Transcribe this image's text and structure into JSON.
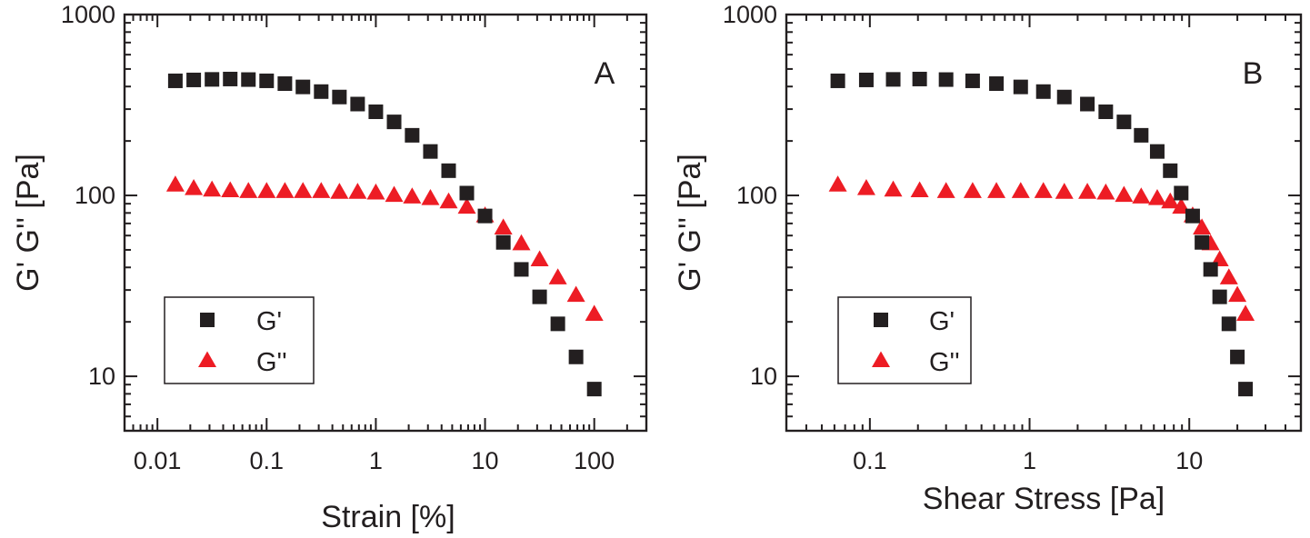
{
  "colors": {
    "gprime": "#231f20",
    "gdoubleprime": "#ed1c24",
    "axis": "#231f20"
  },
  "chart_data": [
    {
      "type": "scatter",
      "panel_label": "A",
      "xlabel": "Strain [%]",
      "ylabel": "G' G'' [Pa]",
      "xscale": "log",
      "yscale": "log",
      "xlim": [
        0.005,
        300
      ],
      "ylim": [
        5,
        1000
      ],
      "x_ticks": [
        0.01,
        0.1,
        1,
        10,
        100
      ],
      "x_tick_labels": [
        "0.01",
        "0.1",
        "1",
        "10",
        "100"
      ],
      "y_ticks": [
        10,
        100,
        1000
      ],
      "y_tick_labels": [
        "10",
        "100",
        "1000"
      ],
      "legend_position": "bottom-left",
      "grid": false,
      "series": [
        {
          "name": "G'",
          "marker": "square",
          "color": "#231f20",
          "x": [
            0.0146,
            0.0215,
            0.0316,
            0.0464,
            0.0681,
            0.1,
            0.147,
            0.215,
            0.316,
            0.464,
            0.681,
            1.0,
            1.47,
            2.15,
            3.16,
            4.64,
            6.81,
            10.0,
            14.7,
            21.5,
            31.6,
            46.4,
            68.1,
            100
          ],
          "y": [
            430,
            435,
            438,
            440,
            437,
            430,
            415,
            398,
            375,
            350,
            320,
            290,
            255,
            215,
            175,
            137,
            103,
            77,
            55,
            39,
            27.5,
            19.5,
            12.8,
            8.5
          ]
        },
        {
          "name": "G''",
          "marker": "triangle",
          "color": "#ed1c24",
          "x": [
            0.0146,
            0.0215,
            0.0316,
            0.0464,
            0.0681,
            0.1,
            0.147,
            0.215,
            0.316,
            0.464,
            0.681,
            1.0,
            1.47,
            2.15,
            3.16,
            4.64,
            6.81,
            10.0,
            14.7,
            21.5,
            31.6,
            46.4,
            68.1,
            100
          ],
          "y": [
            114,
            109,
            107,
            106,
            105,
            105,
            105,
            105,
            105,
            104,
            104,
            103,
            100,
            98,
            96,
            92,
            86,
            77,
            66,
            54,
            44,
            35,
            28,
            22
          ]
        }
      ]
    },
    {
      "type": "scatter",
      "panel_label": "B",
      "xlabel": "Shear Stress [Pa]",
      "ylabel": "G' G'' [Pa]",
      "xscale": "log",
      "yscale": "log",
      "xlim": [
        0.03,
        50
      ],
      "ylim": [
        5,
        1000
      ],
      "x_ticks": [
        0.1,
        1,
        10
      ],
      "x_tick_labels": [
        "0.1",
        "1",
        "10"
      ],
      "y_ticks": [
        10,
        100,
        1000
      ],
      "y_tick_labels": [
        "10",
        "100",
        "1000"
      ],
      "legend_position": "bottom-left",
      "grid": false,
      "series": [
        {
          "name": "G'",
          "marker": "square",
          "color": "#231f20",
          "x": [
            0.063,
            0.095,
            0.14,
            0.205,
            0.3,
            0.44,
            0.62,
            0.88,
            1.22,
            1.65,
            2.3,
            3.0,
            3.9,
            5.0,
            6.3,
            7.6,
            8.9,
            10.5,
            12.0,
            13.6,
            15.5,
            17.7,
            20.0,
            22.5
          ],
          "y": [
            430,
            435,
            438,
            440,
            437,
            430,
            415,
            398,
            375,
            350,
            320,
            290,
            255,
            215,
            175,
            137,
            103,
            77,
            55,
            39,
            27.5,
            19.5,
            12.8,
            8.5
          ]
        },
        {
          "name": "G''",
          "marker": "triangle",
          "color": "#ed1c24",
          "x": [
            0.063,
            0.095,
            0.14,
            0.205,
            0.3,
            0.44,
            0.62,
            0.88,
            1.22,
            1.65,
            2.3,
            3.0,
            3.9,
            5.0,
            6.3,
            7.6,
            8.9,
            10.5,
            12.0,
            13.6,
            15.5,
            17.7,
            20.0,
            22.5
          ],
          "y": [
            114,
            109,
            107,
            106,
            105,
            105,
            105,
            105,
            105,
            104,
            104,
            103,
            100,
            98,
            96,
            92,
            86,
            77,
            66,
            54,
            44,
            35,
            28,
            22
          ]
        }
      ]
    }
  ]
}
